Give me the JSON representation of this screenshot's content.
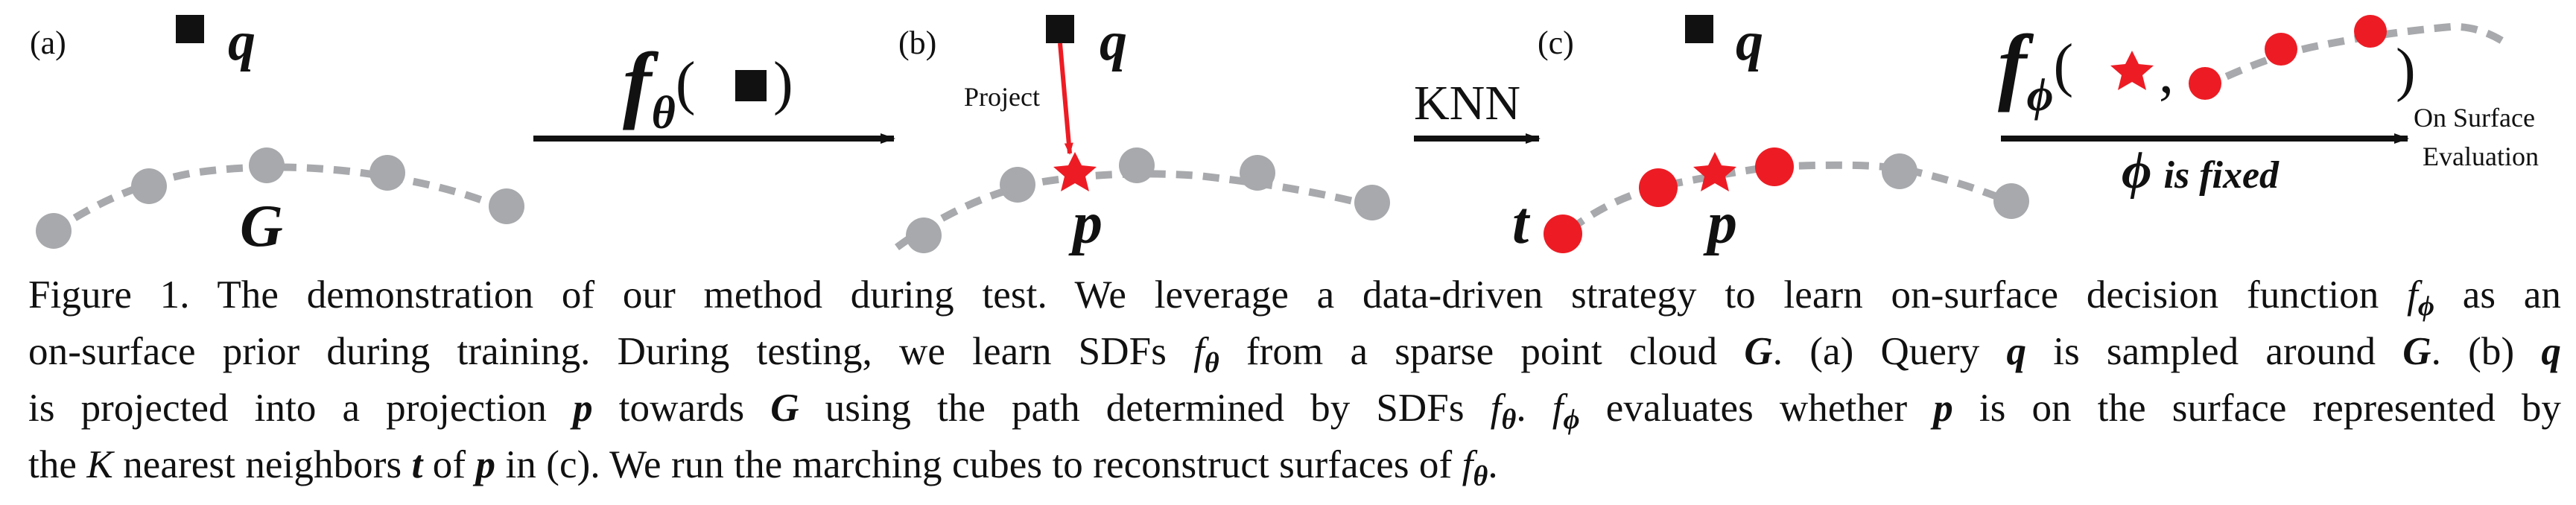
{
  "figure": {
    "panel_a": {
      "tag": "(a)",
      "query_label": "q",
      "cloud_label": "G"
    },
    "arrow_ab": {
      "label_f": "f",
      "label_sub": "θ",
      "label_open": "(",
      "label_close": ")"
    },
    "panel_b": {
      "tag": "(b)",
      "query_label": "q",
      "project_label": "Project",
      "proj_label": "p"
    },
    "arrow_bc": {
      "label": "KNN"
    },
    "panel_c": {
      "tag": "(c)",
      "query_label": "q",
      "proj_label": "p",
      "neighbors_label": "t"
    },
    "panel_d": {
      "label_f": "f",
      "label_sub": "ϕ",
      "label_open": "(",
      "label_comma": ",",
      "label_close": ")",
      "fixed_phi": "ϕ",
      "fixed_text": "is fixed",
      "eval_line1": "On Surface",
      "eval_line2": "Evaluation"
    },
    "colors": {
      "gray_point": "#a7a9ac",
      "gray_curve": "#a7a9ac",
      "red_point": "#ed1c24",
      "black": "#111111"
    }
  },
  "caption": {
    "l1_a": "Figure 1. The demonstration of our method during test. We leverage a data-driven strategy to learn on-surface decision function ",
    "l1_f": "f",
    "l1_sub": "ϕ",
    "l1_b": " as an",
    "l2_a": "on-surface prior during training. During testing, we learn SDFs ",
    "l2_f": "f",
    "l2_sub": "θ",
    "l2_b": " from a sparse point cloud ",
    "l2_G": "G",
    "l2_c": ". (a) Query ",
    "l2_q": "q",
    "l2_d": " is sampled around ",
    "l2_G2": "G",
    "l2_e": ". (b) ",
    "l2_q2": "q",
    "l3_a": "is projected into a projection ",
    "l3_p": "p",
    "l3_b": " towards ",
    "l3_G": "G",
    "l3_c": " using the path determined by SDFs ",
    "l3_f": "f",
    "l3_sub": "θ",
    "l3_d": ". ",
    "l3_f2": "f",
    "l3_sub2": "ϕ",
    "l3_e": " evaluates whether ",
    "l3_p2": "p",
    "l3_f_": " is on the surface represented by",
    "l4_a": "the ",
    "l4_K": "K",
    "l4_b": " nearest neighbors ",
    "l4_t": "t",
    "l4_c": " of ",
    "l4_p": "p",
    "l4_d": " in (c). We run the marching cubes to reconstruct surfaces of ",
    "l4_f": "f",
    "l4_sub": "θ",
    "l4_e": "."
  }
}
